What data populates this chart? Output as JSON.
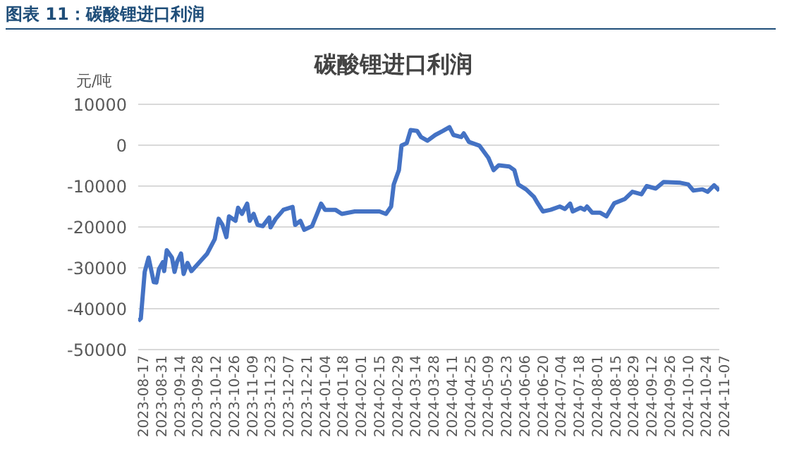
{
  "chart_data": {
    "type": "line",
    "title": "图表 11：碳酸锂进口利润",
    "subtitle": "碳酸锂进口利润",
    "ylabel": "元/吨",
    "x": [
      "2023-08-17",
      "2023-08-19",
      "2023-08-22",
      "2023-08-25",
      "2023-08-29",
      "2023-08-31",
      "2023-09-02",
      "2023-09-05",
      "2023-09-06",
      "2023-09-08",
      "2023-09-12",
      "2023-09-14",
      "2023-09-16",
      "2023-09-19",
      "2023-09-21",
      "2023-09-24",
      "2023-09-27",
      "2023-10-09",
      "2023-10-15",
      "2023-10-18",
      "2023-10-21",
      "2023-10-24",
      "2023-10-26",
      "2023-10-31",
      "2023-11-02",
      "2023-11-05",
      "2023-11-09",
      "2023-11-11",
      "2023-11-14",
      "2023-11-17",
      "2023-11-21",
      "2023-11-26",
      "2023-11-27",
      "2023-12-01",
      "2023-12-07",
      "2023-12-14",
      "2023-12-16",
      "2023-12-20",
      "2023-12-23",
      "2023-12-29",
      "2024-01-02",
      "2024-01-05",
      "2024-01-08",
      "2024-01-16",
      "2024-01-21",
      "2024-01-31",
      "2024-02-19",
      "2024-02-24",
      "2024-02-28",
      "2024-03-01",
      "2024-03-05",
      "2024-03-07",
      "2024-03-11",
      "2024-03-14",
      "2024-03-19",
      "2024-03-22",
      "2024-03-27",
      "2024-04-02",
      "2024-04-08",
      "2024-04-13",
      "2024-04-16",
      "2024-04-22",
      "2024-04-24",
      "2024-04-28",
      "2024-05-06",
      "2024-05-13",
      "2024-05-17",
      "2024-05-21",
      "2024-05-29",
      "2024-06-02",
      "2024-06-05",
      "2024-06-11",
      "2024-06-17",
      "2024-06-20",
      "2024-06-24",
      "2024-06-30",
      "2024-07-07",
      "2024-07-11",
      "2024-07-15",
      "2024-07-17",
      "2024-07-23",
      "2024-07-26",
      "2024-07-28",
      "2024-08-01",
      "2024-08-07",
      "2024-08-12",
      "2024-08-18",
      "2024-08-26",
      "2024-09-01",
      "2024-09-08",
      "2024-09-12",
      "2024-09-19",
      "2024-09-25",
      "2024-10-08",
      "2024-10-14",
      "2024-10-18",
      "2024-10-25",
      "2024-10-29",
      "2024-11-03",
      "2024-11-07"
    ],
    "series": [
      {
        "color": "#4472c4",
        "values": [
          -43000,
          -42400,
          -31000,
          -27500,
          -33500,
          -33600,
          -30300,
          -28600,
          -30800,
          -25700,
          -27500,
          -31000,
          -28500,
          -26500,
          -31500,
          -28800,
          -30800,
          -26600,
          -23000,
          -18000,
          -19500,
          -22500,
          -17400,
          -18500,
          -15300,
          -16800,
          -14300,
          -18500,
          -16800,
          -19500,
          -19800,
          -17700,
          -20100,
          -18000,
          -15800,
          -15100,
          -19500,
          -18500,
          -20700,
          -19800,
          -16700,
          -14300,
          -15800,
          -15800,
          -16800,
          -16200,
          -16200,
          -16800,
          -15000,
          -9600,
          -6100,
          -100,
          500,
          3700,
          3500,
          2000,
          1100,
          2500,
          3500,
          4400,
          2500,
          2000,
          2900,
          800,
          -100,
          -3100,
          -6100,
          -4900,
          -5200,
          -6100,
          -9600,
          -10800,
          -12600,
          -14200,
          -16200,
          -15800,
          -15000,
          -15600,
          -14300,
          -16200,
          -15300,
          -15800,
          -15000,
          -16500,
          -16500,
          -17400,
          -14200,
          -13200,
          -11400,
          -12000,
          -10000,
          -10600,
          -9000,
          -9200,
          -9600,
          -11100,
          -10800,
          -11400,
          -9800,
          -11100
        ]
      }
    ],
    "xlim": [
      "2023-08-17",
      "2024-11-07"
    ],
    "xticks": [
      "2023-08-17",
      "2023-08-31",
      "2023-09-14",
      "2023-09-28",
      "2023-10-12",
      "2023-10-26",
      "2023-11-09",
      "2023-11-23",
      "2023-12-07",
      "2023-12-21",
      "2024-01-04",
      "2024-01-18",
      "2024-02-01",
      "2024-02-15",
      "2024-02-29",
      "2024-03-14",
      "2024-03-28",
      "2024-04-11",
      "2024-04-25",
      "2024-05-09",
      "2024-05-23",
      "2024-06-06",
      "2024-06-20",
      "2024-07-04",
      "2024-07-18",
      "2024-08-01",
      "2024-08-15",
      "2024-08-29",
      "2024-09-12",
      "2024-09-26",
      "2024-10-10",
      "2024-10-24",
      "2024-11-07"
    ],
    "ylim": [
      -50000,
      10000
    ],
    "yticks": [
      -50000,
      -40000,
      -30000,
      -20000,
      -10000,
      0,
      10000
    ],
    "grid": "y",
    "legend": false,
    "marker": "none",
    "line_style": "solid"
  }
}
